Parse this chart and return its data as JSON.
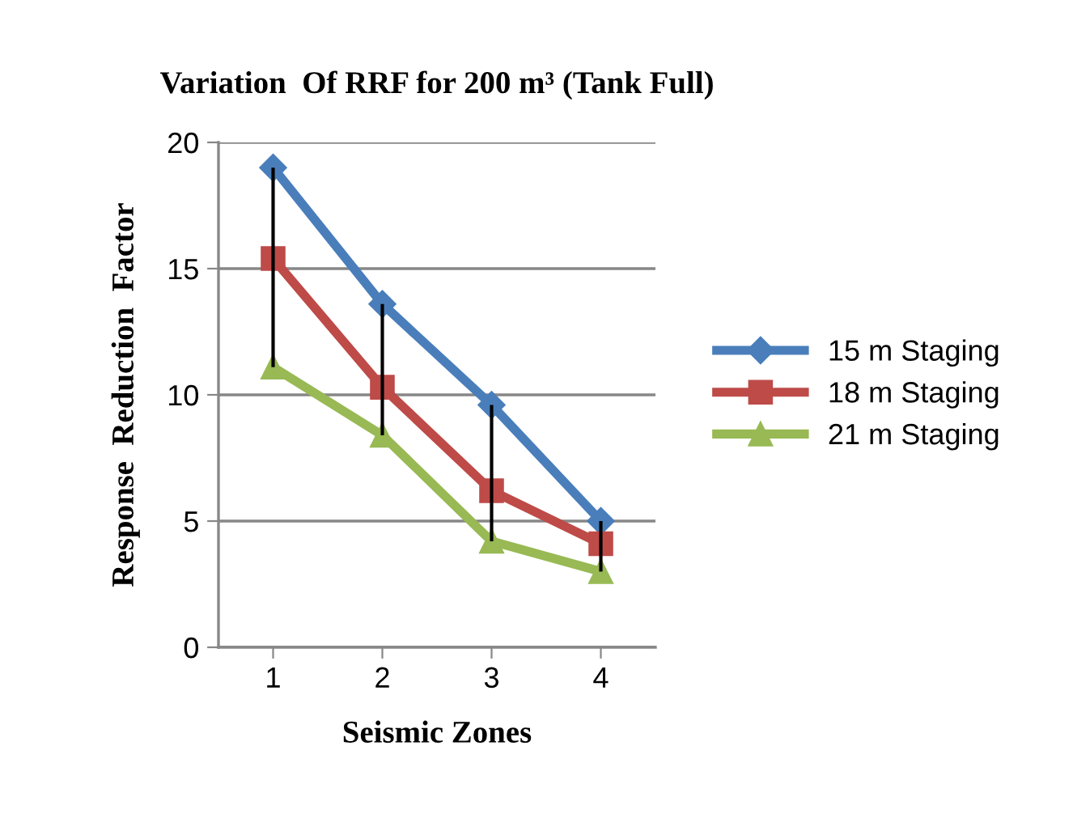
{
  "chart_data": {
    "type": "line",
    "title": "Variation  Of RRF for 200 m³ (Tank Full)",
    "xlabel": "Seismic Zones",
    "ylabel": "Response  Reduction  Factor",
    "categories": [
      "1",
      "2",
      "3",
      "4"
    ],
    "series": [
      {
        "name": "15 m Staging",
        "color": "#4a7ebb",
        "marker": "diamond",
        "values": [
          19.0,
          13.6,
          9.6,
          5.0
        ]
      },
      {
        "name": "18 m Staging",
        "color": "#be4b48",
        "marker": "square",
        "values": [
          15.4,
          10.3,
          6.2,
          4.1
        ],
        "errors": [
          [
            11.1,
            19.0
          ],
          [
            8.4,
            13.6
          ],
          [
            4.2,
            9.6
          ],
          [
            3.0,
            5.0
          ]
        ]
      },
      {
        "name": "21 m Staging",
        "color": "#98b954",
        "marker": "triangle",
        "values": [
          11.1,
          8.4,
          4.2,
          3.0
        ]
      }
    ],
    "ylim": [
      0,
      20
    ],
    "yticks": [
      0,
      5,
      10,
      15,
      20
    ],
    "grid": "y",
    "legend": "right",
    "line_style": "solid"
  }
}
